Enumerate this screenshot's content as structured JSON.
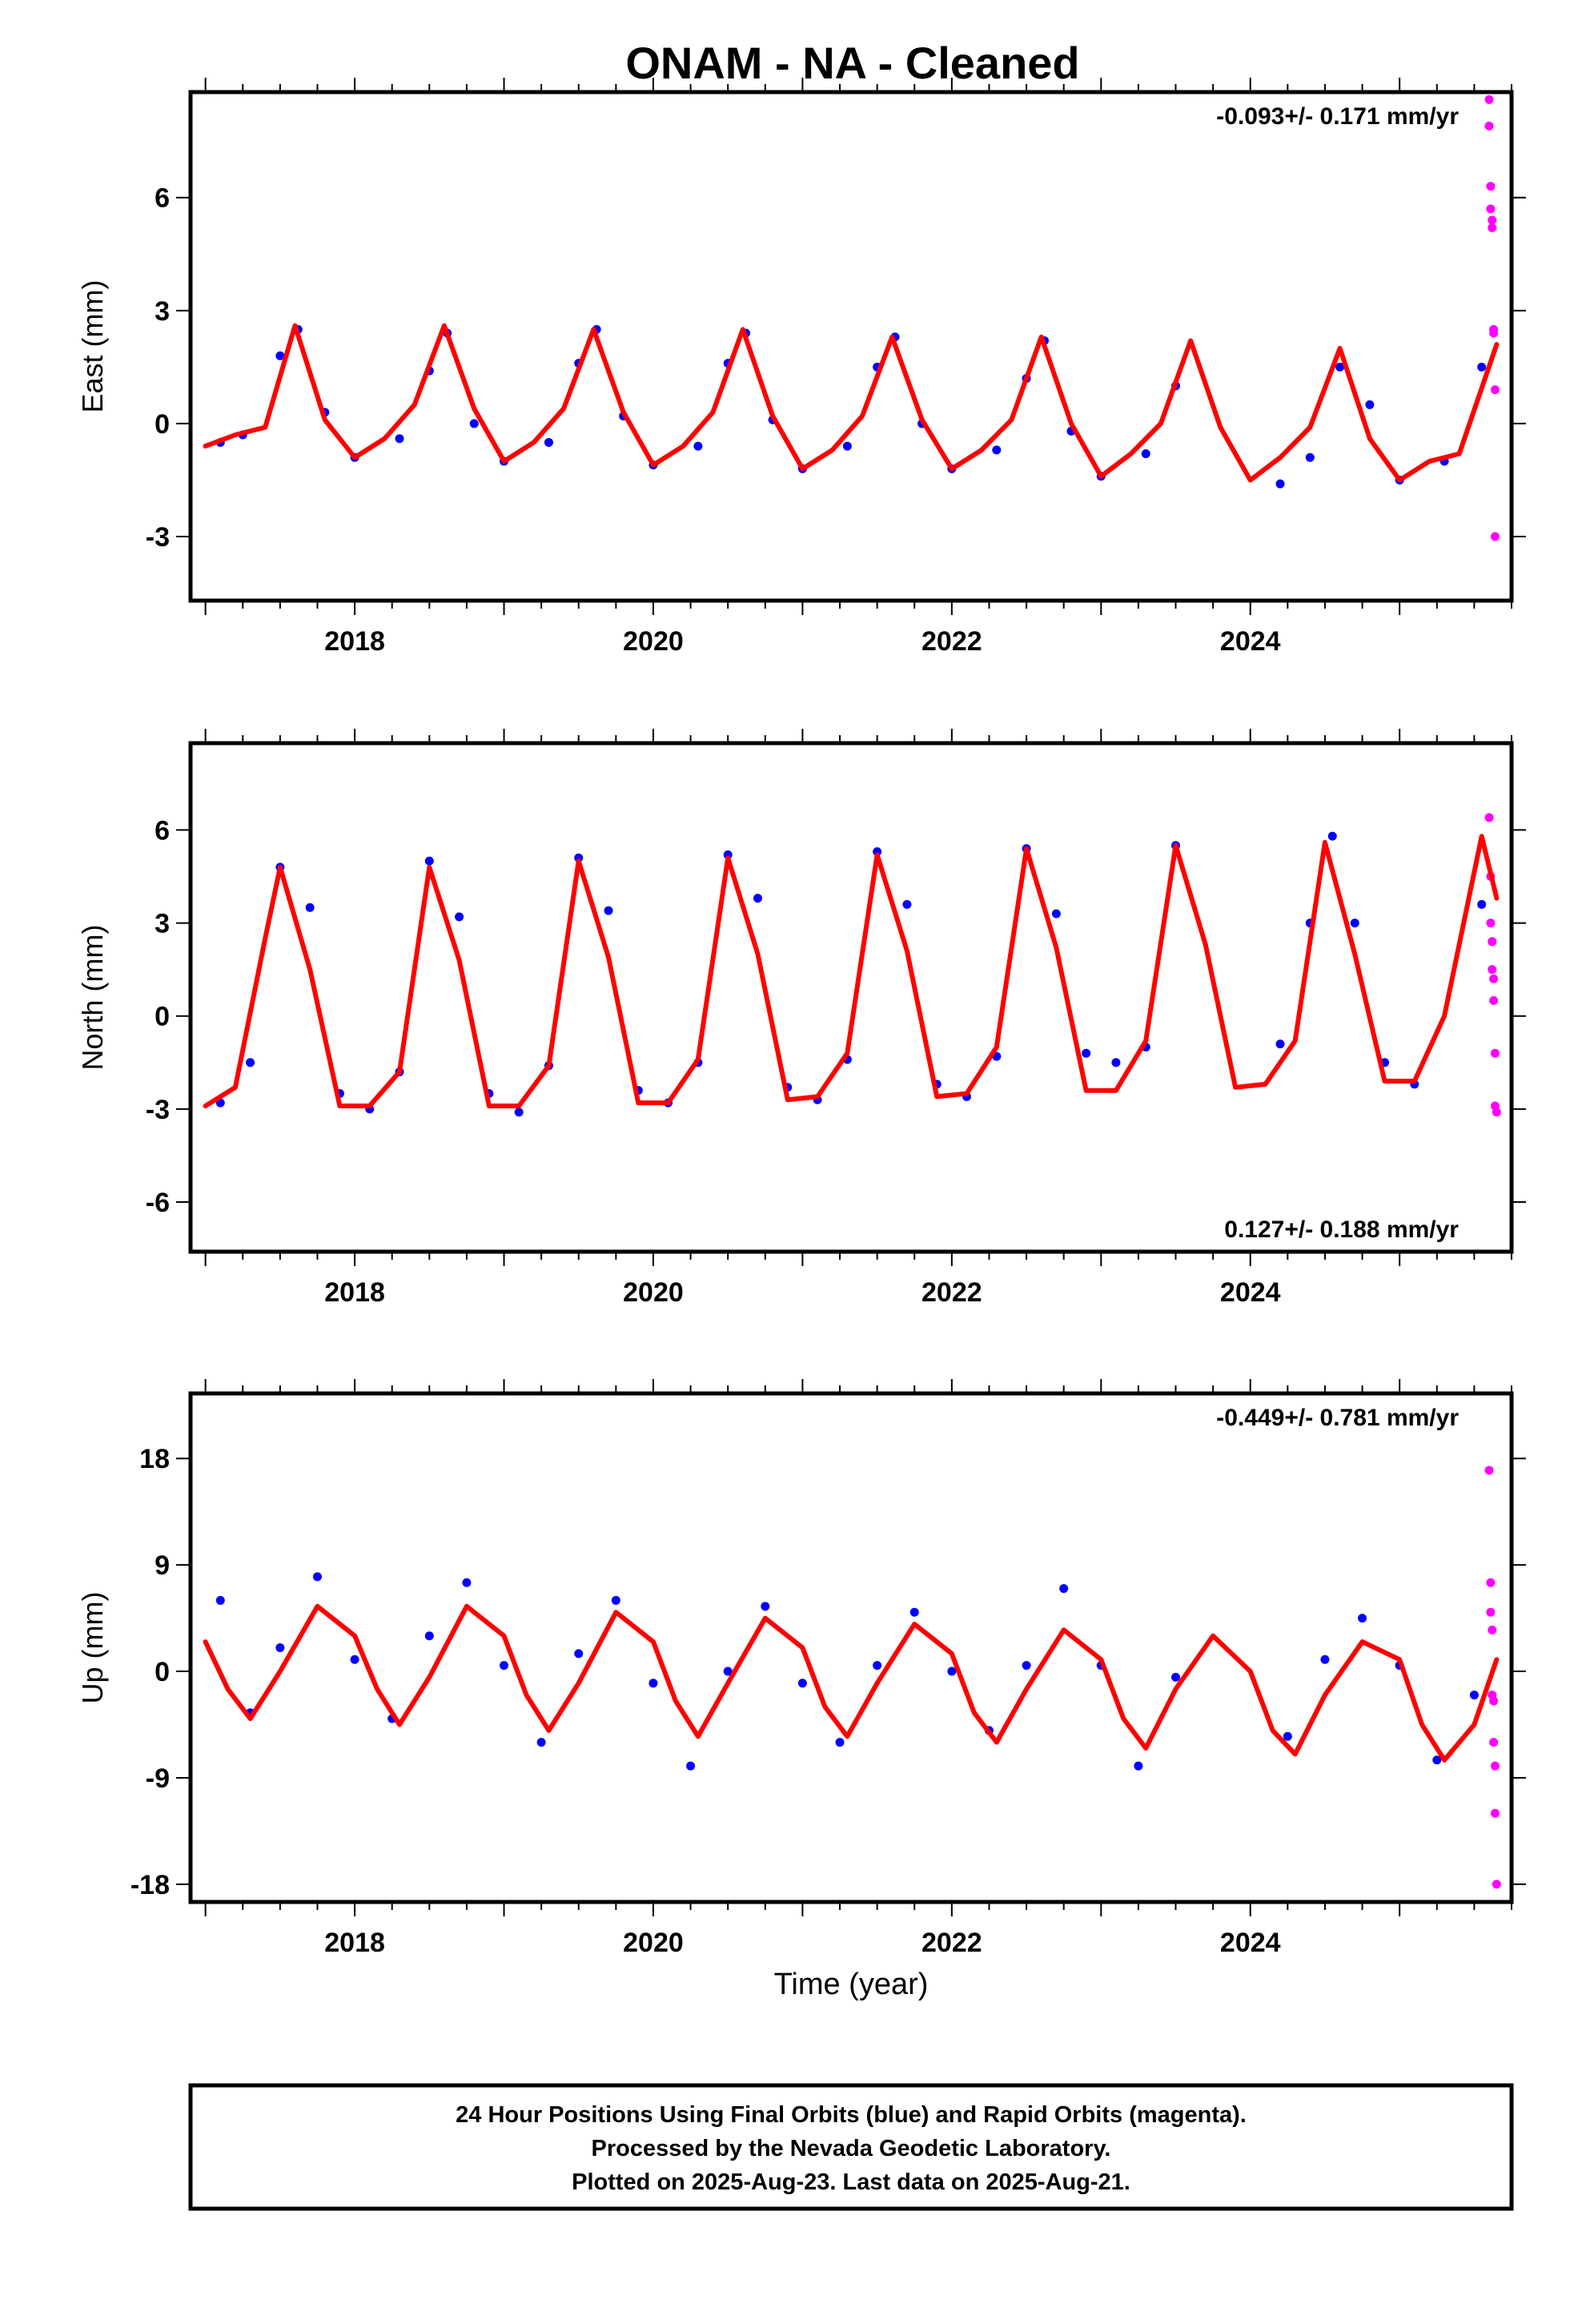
{
  "title": "ONAM  - NA - Cleaned",
  "footer": {
    "lines": [
      "24 Hour Positions Using Final Orbits (blue) and Rapid Orbits (magenta).",
      "Processed by the Nevada Geodetic Laboratory.",
      "Plotted on 2025-Aug-23. Last data on 2025-Aug-21."
    ]
  },
  "colors": {
    "final_orbits": "#0000ff",
    "rapid_orbits": "#ff00ff",
    "model_fit": "#ff0000"
  },
  "chart_data": [
    {
      "type": "scatter",
      "component": "East",
      "ylabel": "East (mm)",
      "xlabel": "",
      "xlim": [
        2016.9,
        2025.75
      ],
      "ylim": [
        -4.7,
        8.8
      ],
      "xticks": [
        "2018",
        "2020",
        "2022",
        "2024"
      ],
      "yticks": [
        "-3",
        "0",
        "3",
        "6"
      ],
      "rate_label": "-0.093+/- 0.171 mm/yr",
      "rate_position": "top-right",
      "series": [
        {
          "name": "Final Orbits",
          "color": "#0000ff",
          "kind": "scatter",
          "x": [
            2017.1,
            2017.25,
            2017.5,
            2017.62,
            2017.8,
            2018.0,
            2018.3,
            2018.5,
            2018.62,
            2018.8,
            2019.0,
            2019.3,
            2019.5,
            2019.62,
            2019.8,
            2020.0,
            2020.3,
            2020.5,
            2020.62,
            2020.8,
            2021.0,
            2021.3,
            2021.5,
            2021.62,
            2021.8,
            2022.0,
            2022.3,
            2022.5,
            2022.62,
            2022.8,
            2023.0,
            2023.3,
            2023.5,
            2024.2,
            2024.4,
            2024.6,
            2024.8,
            2025.0,
            2025.3,
            2025.55
          ],
          "y": [
            -0.5,
            -0.3,
            1.8,
            2.5,
            0.3,
            -0.9,
            -0.4,
            1.4,
            2.4,
            0.0,
            -1.0,
            -0.5,
            1.6,
            2.5,
            0.2,
            -1.1,
            -0.6,
            1.6,
            2.4,
            0.1,
            -1.2,
            -0.6,
            1.5,
            2.3,
            0.0,
            -1.2,
            -0.7,
            1.2,
            2.2,
            -0.2,
            -1.4,
            -0.8,
            1.0,
            -1.6,
            -0.9,
            1.5,
            0.5,
            -1.5,
            -1.0,
            1.5
          ]
        },
        {
          "name": "Rapid Orbits",
          "color": "#ff00ff",
          "kind": "scatter",
          "x": [
            2025.6,
            2025.6,
            2025.61,
            2025.61,
            2025.62,
            2025.62,
            2025.63,
            2025.63,
            2025.64,
            2025.64
          ],
          "y": [
            8.6,
            7.9,
            6.3,
            5.7,
            5.4,
            5.2,
            2.5,
            2.4,
            0.9,
            -3.0
          ]
        },
        {
          "name": "Model Fit",
          "color": "#ff0000",
          "kind": "line",
          "x": [
            2017.0,
            2017.2,
            2017.4,
            2017.6,
            2017.8,
            2018.0,
            2018.2,
            2018.4,
            2018.6,
            2018.8,
            2019.0,
            2019.2,
            2019.4,
            2019.6,
            2019.8,
            2020.0,
            2020.2,
            2020.4,
            2020.6,
            2020.8,
            2021.0,
            2021.2,
            2021.4,
            2021.6,
            2021.8,
            2022.0,
            2022.2,
            2022.4,
            2022.6,
            2022.8,
            2023.0,
            2023.2,
            2023.4,
            2023.6,
            2023.8,
            2024.0,
            2024.2,
            2024.4,
            2024.6,
            2024.8,
            2025.0,
            2025.2,
            2025.4,
            2025.65
          ],
          "y": [
            -0.6,
            -0.3,
            -0.1,
            2.6,
            0.1,
            -0.9,
            -0.4,
            0.5,
            2.6,
            0.4,
            -1.0,
            -0.5,
            0.4,
            2.5,
            0.3,
            -1.1,
            -0.6,
            0.3,
            2.5,
            0.2,
            -1.2,
            -0.7,
            0.2,
            2.3,
            0.1,
            -1.2,
            -0.7,
            0.1,
            2.3,
            0.0,
            -1.4,
            -0.8,
            0.0,
            2.2,
            -0.1,
            -1.5,
            -0.9,
            -0.1,
            2.0,
            -0.4,
            -1.5,
            -1.0,
            -0.8,
            2.1
          ]
        }
      ]
    },
    {
      "type": "scatter",
      "component": "North",
      "ylabel": "North (mm)",
      "xlabel": "",
      "xlim": [
        2016.9,
        2025.75
      ],
      "ylim": [
        -7.6,
        8.8
      ],
      "xticks": [
        "2018",
        "2020",
        "2022",
        "2024"
      ],
      "yticks": [
        "-6",
        "-3",
        "0",
        "3",
        "6"
      ],
      "rate_label": "0.127+/- 0.188 mm/yr",
      "rate_position": "bottom-right",
      "series": [
        {
          "name": "Final Orbits",
          "color": "#0000ff",
          "kind": "scatter",
          "x": [
            2017.1,
            2017.3,
            2017.5,
            2017.7,
            2017.9,
            2018.1,
            2018.3,
            2018.5,
            2018.7,
            2018.9,
            2019.1,
            2019.3,
            2019.5,
            2019.7,
            2019.9,
            2020.1,
            2020.3,
            2020.5,
            2020.7,
            2020.9,
            2021.1,
            2021.3,
            2021.5,
            2021.7,
            2021.9,
            2022.1,
            2022.3,
            2022.5,
            2022.7,
            2022.9,
            2023.1,
            2023.3,
            2023.5,
            2024.2,
            2024.4,
            2024.55,
            2024.7,
            2024.9,
            2025.1,
            2025.55
          ],
          "y": [
            -2.8,
            -1.5,
            4.8,
            3.5,
            -2.5,
            -3.0,
            -1.8,
            5.0,
            3.2,
            -2.5,
            -3.1,
            -1.6,
            5.1,
            3.4,
            -2.4,
            -2.8,
            -1.5,
            5.2,
            3.8,
            -2.3,
            -2.7,
            -1.4,
            5.3,
            3.6,
            -2.2,
            -2.6,
            -1.3,
            5.4,
            3.3,
            -1.2,
            -1.5,
            -1.0,
            5.5,
            -0.9,
            3.0,
            5.8,
            3.0,
            -1.5,
            -2.2,
            3.6
          ]
        },
        {
          "name": "Rapid Orbits",
          "color": "#ff00ff",
          "kind": "scatter",
          "x": [
            2025.6,
            2025.61,
            2025.61,
            2025.62,
            2025.62,
            2025.63,
            2025.63,
            2025.64,
            2025.64,
            2025.65
          ],
          "y": [
            6.4,
            4.5,
            3.0,
            2.4,
            1.5,
            1.2,
            0.5,
            -1.2,
            -2.9,
            -3.1
          ]
        },
        {
          "name": "Model Fit",
          "color": "#ff0000",
          "kind": "line",
          "x": [
            2017.0,
            2017.2,
            2017.4,
            2017.5,
            2017.7,
            2017.9,
            2018.1,
            2018.3,
            2018.5,
            2018.7,
            2018.9,
            2019.1,
            2019.3,
            2019.5,
            2019.7,
            2019.9,
            2020.1,
            2020.3,
            2020.5,
            2020.7,
            2020.9,
            2021.1,
            2021.3,
            2021.5,
            2021.7,
            2021.9,
            2022.1,
            2022.3,
            2022.5,
            2022.7,
            2022.9,
            2023.1,
            2023.3,
            2023.5,
            2023.7,
            2023.9,
            2024.1,
            2024.3,
            2024.5,
            2024.7,
            2024.9,
            2025.1,
            2025.3,
            2025.55,
            2025.65
          ],
          "y": [
            -2.9,
            -2.3,
            2.5,
            4.8,
            1.5,
            -2.9,
            -2.9,
            -1.8,
            4.8,
            1.8,
            -2.9,
            -2.9,
            -1.6,
            5.0,
            1.9,
            -2.8,
            -2.8,
            -1.4,
            5.1,
            2.0,
            -2.7,
            -2.6,
            -1.2,
            5.2,
            2.1,
            -2.6,
            -2.5,
            -1.0,
            5.4,
            2.2,
            -2.4,
            -2.4,
            -0.8,
            5.5,
            2.3,
            -2.3,
            -2.2,
            -0.8,
            5.6,
            2.0,
            -2.1,
            -2.1,
            0.0,
            5.8,
            3.8
          ]
        }
      ]
    },
    {
      "type": "scatter",
      "component": "Up",
      "ylabel": "Up (mm)",
      "xlabel": "Time (year)",
      "xlim": [
        2016.9,
        2025.75
      ],
      "ylim": [
        -19.5,
        23.5
      ],
      "xticks": [
        "2018",
        "2020",
        "2022",
        "2024"
      ],
      "yticks": [
        "-18",
        "-9",
        "0",
        "9",
        "18"
      ],
      "rate_label": "-0.449+/- 0.781 mm/yr",
      "rate_position": "top-right",
      "series": [
        {
          "name": "Final Orbits",
          "color": "#0000ff",
          "kind": "scatter",
          "x": [
            2017.1,
            2017.3,
            2017.5,
            2017.75,
            2018.0,
            2018.25,
            2018.5,
            2018.75,
            2019.0,
            2019.25,
            2019.5,
            2019.75,
            2020.0,
            2020.25,
            2020.5,
            2020.75,
            2021.0,
            2021.25,
            2021.5,
            2021.75,
            2022.0,
            2022.25,
            2022.5,
            2022.75,
            2023.0,
            2023.25,
            2023.5,
            2024.25,
            2024.5,
            2024.75,
            2025.0,
            2025.25,
            2025.5
          ],
          "y": [
            6.0,
            -3.5,
            2.0,
            8.0,
            1.0,
            -4.0,
            3.0,
            7.5,
            0.5,
            -6.0,
            1.5,
            6.0,
            -1.0,
            -8.0,
            0.0,
            5.5,
            -1.0,
            -6.0,
            0.5,
            5.0,
            0.0,
            -5.0,
            0.5,
            7.0,
            0.5,
            -8.0,
            -0.5,
            -5.5,
            1.0,
            4.5,
            0.5,
            -7.5,
            -2.0
          ]
        },
        {
          "name": "Rapid Orbits",
          "color": "#ff00ff",
          "kind": "scatter",
          "x": [
            2025.6,
            2025.61,
            2025.61,
            2025.62,
            2025.62,
            2025.63,
            2025.63,
            2025.64,
            2025.64,
            2025.65
          ],
          "y": [
            17.0,
            7.5,
            5.0,
            3.5,
            -2.0,
            -2.5,
            -6.0,
            -8.0,
            -12.0,
            -18.0
          ]
        },
        {
          "name": "Model Fit",
          "color": "#ff0000",
          "kind": "line",
          "x": [
            2017.0,
            2017.15,
            2017.3,
            2017.5,
            2017.75,
            2018.0,
            2018.15,
            2018.3,
            2018.5,
            2018.75,
            2019.0,
            2019.15,
            2019.3,
            2019.5,
            2019.75,
            2020.0,
            2020.15,
            2020.3,
            2020.5,
            2020.75,
            2021.0,
            2021.15,
            2021.3,
            2021.5,
            2021.75,
            2022.0,
            2022.15,
            2022.3,
            2022.5,
            2022.75,
            2023.0,
            2023.15,
            2023.3,
            2023.5,
            2023.75,
            2024.0,
            2024.15,
            2024.3,
            2024.5,
            2024.75,
            2025.0,
            2025.15,
            2025.3,
            2025.5,
            2025.65
          ],
          "y": [
            2.5,
            -1.5,
            -4.0,
            0.0,
            5.5,
            3.0,
            -1.5,
            -4.5,
            -0.5,
            5.5,
            3.0,
            -2.0,
            -5.0,
            -1.0,
            5.0,
            2.5,
            -2.5,
            -5.5,
            -1.0,
            4.5,
            2.0,
            -3.0,
            -5.5,
            -1.0,
            4.0,
            1.5,
            -3.5,
            -6.0,
            -1.5,
            3.5,
            1.0,
            -4.0,
            -6.5,
            -1.5,
            3.0,
            0.0,
            -5.0,
            -7.0,
            -2.0,
            2.5,
            1.0,
            -4.5,
            -7.5,
            -4.5,
            1.0
          ]
        }
      ]
    }
  ]
}
